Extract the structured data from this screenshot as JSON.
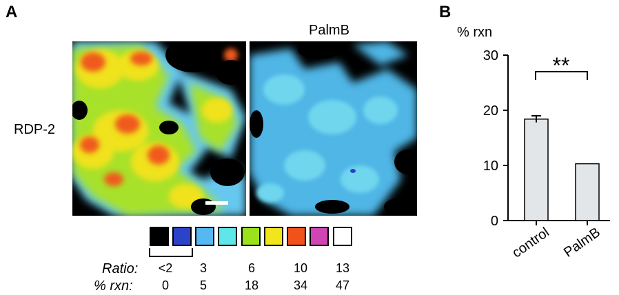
{
  "panelA": {
    "letter": "A",
    "column_label": "PalmB",
    "row_label": "RDP-2"
  },
  "legend": {
    "colors": [
      "#000000",
      "#2b43c9",
      "#55b8f0",
      "#5fe6e6",
      "#9be21c",
      "#f1e51b",
      "#f0521a",
      "#cf45b4",
      "#ffffff"
    ],
    "ratio_label": "Ratio:",
    "rxn_label": "% rxn:",
    "ratio_values": [
      "<2",
      "3",
      "6",
      "10",
      "13"
    ],
    "rxn_values": [
      "0",
      "5",
      "18",
      "34",
      "47"
    ]
  },
  "panelB": {
    "letter": "B",
    "ylabel": "% rxn",
    "significance": "**"
  },
  "chart_data": {
    "type": "bar",
    "categories": [
      "control",
      "PalmB"
    ],
    "values": [
      18.4,
      10.3
    ],
    "errors": [
      0.6,
      0
    ],
    "ylim": [
      0,
      30
    ],
    "yticks": [
      "0",
      "10",
      "20",
      "30"
    ],
    "bar_color": "#e3e6e8"
  }
}
